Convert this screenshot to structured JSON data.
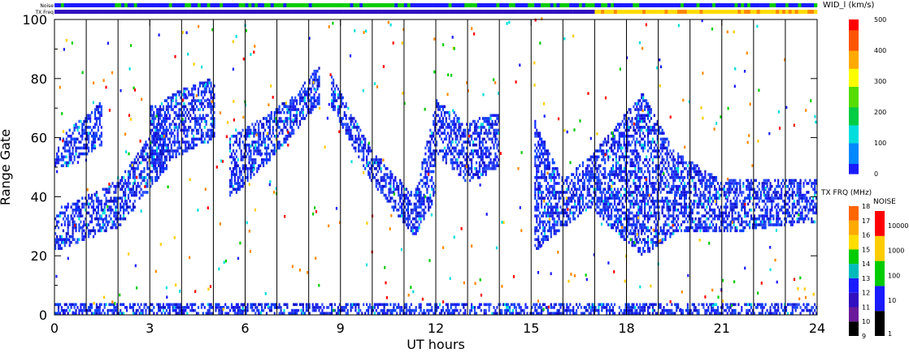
{
  "chart_data": {
    "type": "heatmap",
    "title": "",
    "xlabel": "UT hours",
    "ylabel": "Range Gate",
    "xlim": [
      0,
      24
    ],
    "ylim": [
      0,
      100
    ],
    "xticks": [
      0,
      3,
      6,
      9,
      12,
      15,
      18,
      21,
      24
    ],
    "yticks": [
      0,
      20,
      40,
      60,
      80,
      100
    ],
    "grid_vertical_hours": [
      1,
      2,
      3,
      4,
      5,
      6,
      7,
      8,
      9,
      10,
      11,
      12,
      13,
      14,
      15,
      16,
      17,
      18,
      19,
      20,
      21,
      22,
      23
    ],
    "status_bars": [
      {
        "label": "Noise",
        "segments": [
          {
            "from": 0,
            "to": 6.5,
            "level": "10"
          },
          {
            "from": 6.5,
            "to": 11.0,
            "level": "100"
          },
          {
            "from": 11.0,
            "to": 15.3,
            "level": "10"
          },
          {
            "from": 15.3,
            "to": 17.0,
            "level": "100"
          },
          {
            "from": 17.0,
            "to": 24,
            "level": "10"
          }
        ]
      },
      {
        "label": "TX Freq",
        "segments": [
          {
            "from": 0,
            "to": 17.0,
            "freq": 11
          },
          {
            "from": 17.0,
            "to": 24,
            "freq": 15
          }
        ]
      }
    ],
    "colorbars": [
      {
        "title": "WID_l (km/s)",
        "ticks": [
          0,
          100,
          200,
          300,
          400,
          500
        ]
      },
      {
        "title": "TX FRQ (MHz)",
        "ticks": [
          9,
          10,
          11,
          12,
          13,
          14,
          15,
          16,
          17,
          18
        ]
      },
      {
        "title": "NOISE",
        "ticks": [
          "1",
          "10",
          "100",
          "1000",
          "10000"
        ]
      }
    ],
    "echo_bands": [
      {
        "ut": [
          0.0,
          2.0,
          3.5
        ],
        "gate_lo": [
          22,
          30,
          50
        ],
        "gate_hi": [
          35,
          45,
          68
        ]
      },
      {
        "ut": [
          0.0,
          1.5
        ],
        "gate_lo": [
          48,
          58
        ],
        "gate_hi": [
          58,
          72
        ]
      },
      {
        "ut": [
          3.0,
          4.0,
          5.0
        ],
        "gate_lo": [
          50,
          55,
          60
        ],
        "gate_hi": [
          70,
          76,
          80
        ]
      },
      {
        "ut": [
          5.5,
          6.5,
          7.5,
          8.3
        ],
        "gate_lo": [
          40,
          50,
          62,
          72
        ],
        "gate_hi": [
          60,
          66,
          74,
          84
        ]
      },
      {
        "ut": [
          8.7,
          10.0,
          11.3,
          12.0
        ],
        "gate_lo": [
          70,
          45,
          27,
          40
        ],
        "gate_hi": [
          80,
          55,
          40,
          72
        ]
      },
      {
        "ut": [
          12.0,
          13.0,
          14.0
        ],
        "gate_lo": [
          55,
          45,
          50
        ],
        "gate_hi": [
          72,
          65,
          68
        ]
      },
      {
        "ut": [
          15.1,
          16.0,
          17.0
        ],
        "gate_lo": [
          22,
          30,
          38
        ],
        "gate_hi": [
          65,
          45,
          55
        ]
      },
      {
        "ut": [
          17.0,
          18.5,
          19.5,
          21.0,
          24.0
        ],
        "gate_lo": [
          35,
          20,
          28,
          28,
          32
        ],
        "gate_hi": [
          55,
          75,
          55,
          45,
          46
        ]
      },
      {
        "ut": [
          0.0,
          24.0
        ],
        "gate_lo": [
          0,
          0
        ],
        "gate_hi": [
          3,
          3
        ]
      }
    ]
  }
}
